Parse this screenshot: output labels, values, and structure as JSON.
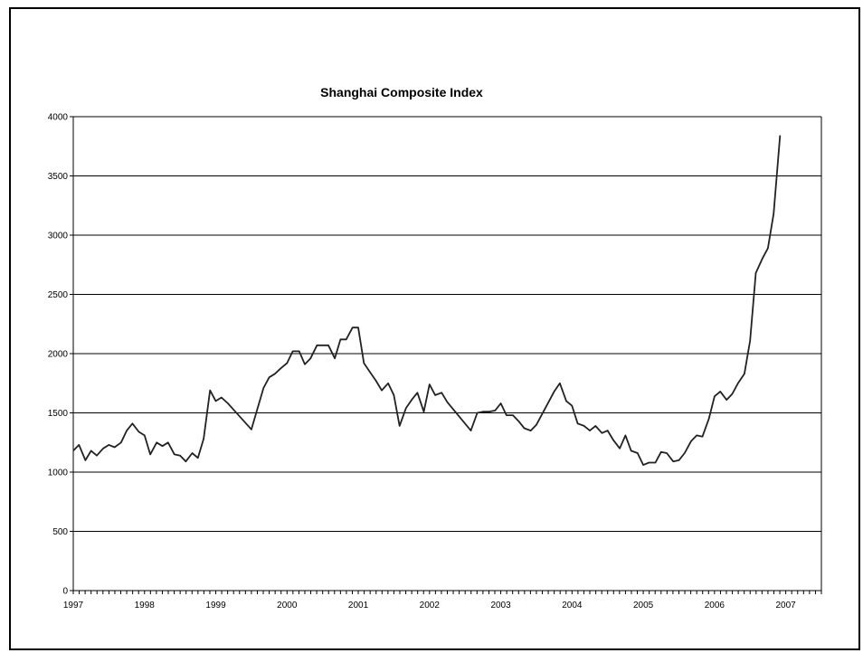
{
  "chart_data": {
    "type": "line",
    "title": "Shanghai Composite Index",
    "xlabel": "",
    "ylabel": "",
    "xlim": [
      1997,
      2007.5
    ],
    "ylim": [
      0,
      4000
    ],
    "yticks": [
      0,
      500,
      1000,
      1500,
      2000,
      2500,
      3000,
      3500,
      4000
    ],
    "xticks": [
      1997,
      1998,
      1999,
      2000,
      2001,
      2002,
      2003,
      2004,
      2005,
      2006,
      2007
    ],
    "xtick_labels": [
      "1997",
      "1998",
      "1999",
      "2000",
      "2001",
      "2002",
      "2003",
      "2004",
      "2005",
      "2006",
      "2007"
    ],
    "grid": "horizontal",
    "legend": "none",
    "series": [
      {
        "line_color": "#222222",
        "points": [
          [
            1997.0,
            1180
          ],
          [
            1997.08,
            1230
          ],
          [
            1997.17,
            1100
          ],
          [
            1997.25,
            1180
          ],
          [
            1997.33,
            1140
          ],
          [
            1997.42,
            1200
          ],
          [
            1997.5,
            1230
          ],
          [
            1997.58,
            1210
          ],
          [
            1997.67,
            1250
          ],
          [
            1997.75,
            1350
          ],
          [
            1997.83,
            1410
          ],
          [
            1997.92,
            1340
          ],
          [
            1998.0,
            1310
          ],
          [
            1998.08,
            1150
          ],
          [
            1998.17,
            1250
          ],
          [
            1998.25,
            1220
          ],
          [
            1998.33,
            1250
          ],
          [
            1998.42,
            1150
          ],
          [
            1998.5,
            1140
          ],
          [
            1998.58,
            1090
          ],
          [
            1998.67,
            1160
          ],
          [
            1998.75,
            1120
          ],
          [
            1998.83,
            1280
          ],
          [
            1998.92,
            1690
          ],
          [
            1999.0,
            1600
          ],
          [
            1999.08,
            1630
          ],
          [
            1999.17,
            1580
          ],
          [
            1999.5,
            1360
          ],
          [
            1999.67,
            1710
          ],
          [
            1999.75,
            1800
          ],
          [
            1999.83,
            1830
          ],
          [
            1999.92,
            1880
          ],
          [
            2000.0,
            1920
          ],
          [
            2000.08,
            2020
          ],
          [
            2000.17,
            2020
          ],
          [
            2000.25,
            1910
          ],
          [
            2000.33,
            1960
          ],
          [
            2000.42,
            2070
          ],
          [
            2000.5,
            2070
          ],
          [
            2000.58,
            2070
          ],
          [
            2000.67,
            1960
          ],
          [
            2000.75,
            2120
          ],
          [
            2000.83,
            2120
          ],
          [
            2000.92,
            2220
          ],
          [
            2001.0,
            2220
          ],
          [
            2001.08,
            1920
          ],
          [
            2001.17,
            1840
          ],
          [
            2001.25,
            1770
          ],
          [
            2001.33,
            1690
          ],
          [
            2001.42,
            1750
          ],
          [
            2001.5,
            1650
          ],
          [
            2001.58,
            1390
          ],
          [
            2001.67,
            1540
          ],
          [
            2001.75,
            1610
          ],
          [
            2001.83,
            1670
          ],
          [
            2001.92,
            1510
          ],
          [
            2002.0,
            1740
          ],
          [
            2002.08,
            1650
          ],
          [
            2002.17,
            1670
          ],
          [
            2002.25,
            1590
          ],
          [
            2002.58,
            1350
          ],
          [
            2002.67,
            1500
          ],
          [
            2002.75,
            1510
          ],
          [
            2002.83,
            1510
          ],
          [
            2002.92,
            1520
          ],
          [
            2003.0,
            1580
          ],
          [
            2003.08,
            1480
          ],
          [
            2003.17,
            1480
          ],
          [
            2003.25,
            1430
          ],
          [
            2003.33,
            1370
          ],
          [
            2003.42,
            1350
          ],
          [
            2003.5,
            1400
          ],
          [
            2003.58,
            1490
          ],
          [
            2003.75,
            1680
          ],
          [
            2003.83,
            1750
          ],
          [
            2003.92,
            1600
          ],
          [
            2004.0,
            1560
          ],
          [
            2004.08,
            1410
          ],
          [
            2004.17,
            1390
          ],
          [
            2004.25,
            1350
          ],
          [
            2004.33,
            1390
          ],
          [
            2004.42,
            1330
          ],
          [
            2004.5,
            1350
          ],
          [
            2004.58,
            1270
          ],
          [
            2004.67,
            1200
          ],
          [
            2004.75,
            1310
          ],
          [
            2004.83,
            1180
          ],
          [
            2004.92,
            1160
          ],
          [
            2005.0,
            1060
          ],
          [
            2005.08,
            1080
          ],
          [
            2005.17,
            1080
          ],
          [
            2005.25,
            1170
          ],
          [
            2005.33,
            1160
          ],
          [
            2005.42,
            1090
          ],
          [
            2005.5,
            1100
          ],
          [
            2005.58,
            1160
          ],
          [
            2005.67,
            1260
          ],
          [
            2005.75,
            1310
          ],
          [
            2005.83,
            1300
          ],
          [
            2005.92,
            1450
          ],
          [
            2006.0,
            1640
          ],
          [
            2006.08,
            1680
          ],
          [
            2006.17,
            1610
          ],
          [
            2006.25,
            1660
          ],
          [
            2006.33,
            1750
          ],
          [
            2006.42,
            1830
          ],
          [
            2006.5,
            2110
          ],
          [
            2006.58,
            2680
          ],
          [
            2006.67,
            2800
          ],
          [
            2006.75,
            2890
          ],
          [
            2006.83,
            3180
          ],
          [
            2006.92,
            3840
          ]
        ]
      }
    ]
  }
}
